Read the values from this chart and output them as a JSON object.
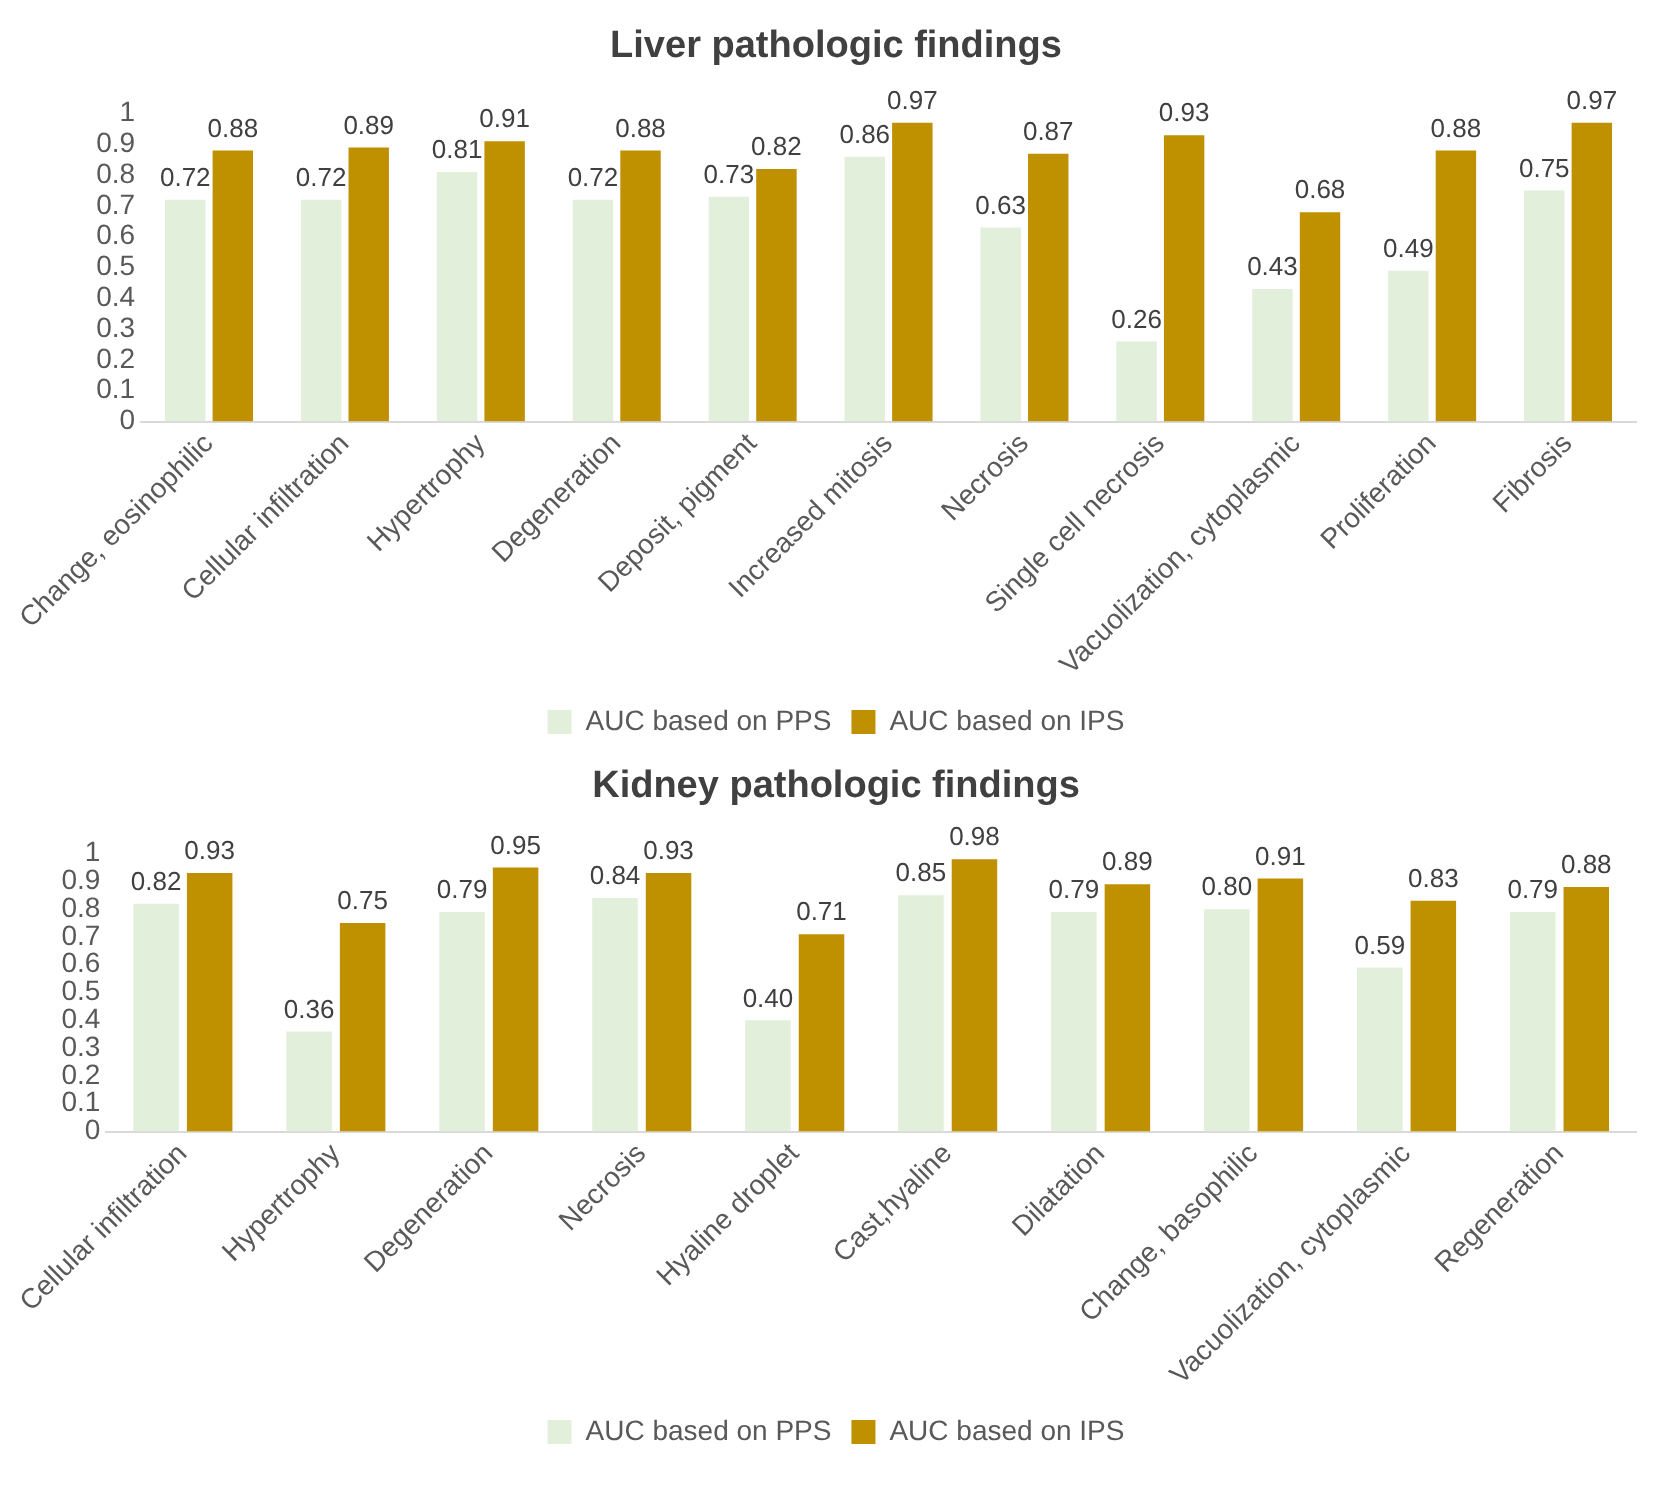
{
  "chart_data": [
    {
      "type": "bar",
      "title": "Liver pathologic findings",
      "categories": [
        "Change, eosinophilic",
        "Cellular infiltration",
        "Hypertrophy",
        "Degeneration",
        "Deposit, pigment",
        "Increased mitosis",
        "Necrosis",
        "Single cell necrosis",
        "Vacuolization, cytoplasmic",
        "Proliferation",
        "Fibrosis"
      ],
      "series": [
        {
          "name": "AUC based on PPS",
          "color": "#e2efda",
          "values": [
            0.72,
            0.72,
            0.81,
            0.72,
            0.73,
            0.86,
            0.63,
            0.26,
            0.43,
            0.49,
            0.75
          ],
          "value_labels": [
            "0.72",
            "0.72",
            "0.81",
            "0.72",
            "0.73",
            "0.86",
            "0.63",
            "0.26",
            "0.43",
            "0.49",
            "0.75"
          ]
        },
        {
          "name": "AUC based on IPS",
          "color": "#bf9000",
          "values": [
            0.88,
            0.89,
            0.91,
            0.88,
            0.82,
            0.97,
            0.87,
            0.93,
            0.68,
            0.88,
            0.97
          ],
          "value_labels": [
            "0.88",
            "0.89",
            "0.91",
            "0.88",
            "0.82",
            "0.97",
            "0.87",
            "0.93",
            "0.68",
            "0.88",
            "0.97"
          ]
        }
      ],
      "ylim": [
        0,
        1
      ],
      "yticks": [
        0,
        0.1,
        0.2,
        0.3,
        0.4,
        0.5,
        0.6,
        0.7,
        0.8,
        0.9,
        1
      ],
      "grid": false,
      "legend": "bottom"
    },
    {
      "type": "bar",
      "title": "Kidney pathologic findings",
      "categories": [
        "Cellular infiltration",
        "Hypertrophy",
        "Degeneration",
        "Necrosis",
        "Hyaline droplet",
        "Cast,hyaline",
        "Dilatation",
        "Change, basophilic",
        "Vacuolization, cytoplasmic",
        "Regeneration"
      ],
      "series": [
        {
          "name": "AUC based on PPS",
          "color": "#e2efda",
          "values": [
            0.82,
            0.36,
            0.79,
            0.84,
            0.4,
            0.85,
            0.79,
            0.8,
            0.59,
            0.79
          ],
          "value_labels": [
            "0.82",
            "0.36",
            "0.79",
            "0.84",
            "0.40",
            "0.85",
            "0.79",
            "0.80",
            "0.59",
            "0.79"
          ]
        },
        {
          "name": "AUC based on IPS",
          "color": "#bf9000",
          "values": [
            0.93,
            0.75,
            0.95,
            0.93,
            0.71,
            0.98,
            0.89,
            0.91,
            0.83,
            0.88
          ],
          "value_labels": [
            "0.93",
            "0.75",
            "0.95",
            "0.93",
            "0.71",
            "0.98",
            "0.89",
            "0.91",
            "0.83",
            "0.88"
          ]
        }
      ],
      "ylim": [
        0,
        1
      ],
      "yticks": [
        0,
        0.1,
        0.2,
        0.3,
        0.4,
        0.5,
        0.6,
        0.7,
        0.8,
        0.9,
        1
      ],
      "grid": false,
      "legend": "bottom"
    }
  ]
}
